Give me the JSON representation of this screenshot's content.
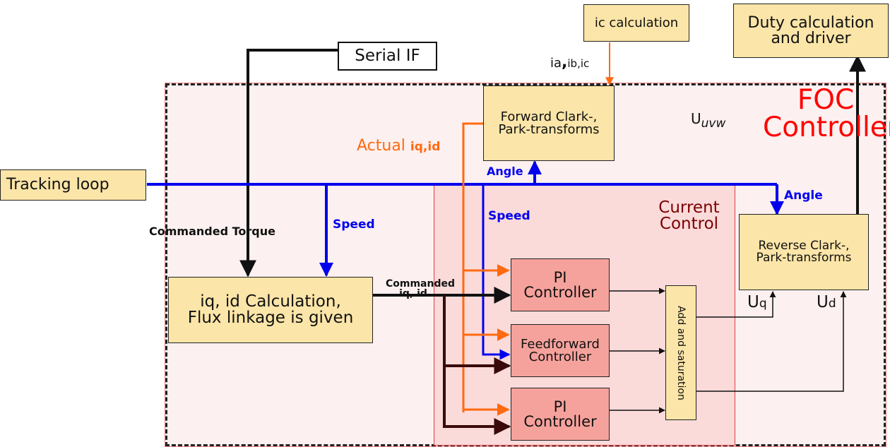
{
  "foc": {
    "line1": "FOC",
    "line2": "Controller"
  },
  "current_control": {
    "line1": "Current",
    "line2": "Control"
  },
  "boxes": {
    "serial_if": "Serial IF",
    "ic_calc": "ic calculation",
    "duty": {
      "line1": "Duty calculation",
      "line2": "and driver"
    },
    "tracking": "Tracking loop",
    "forward": {
      "line1": "Forward Clark-,",
      "line2": "Park-transforms"
    },
    "reverse": {
      "line1": "Reverse Clark-,",
      "line2": "Park-transforms"
    },
    "iq_calc": {
      "line1": "iq, id Calculation,",
      "line2": "Flux linkage is given"
    },
    "pi1": {
      "line1": "PI",
      "line2": "Controller"
    },
    "ff": {
      "line1": "Feedforward",
      "line2": "Controller"
    },
    "pi2": {
      "line1": "PI",
      "line2": "Controller"
    },
    "add_sat": "Add and saturation"
  },
  "labels": {
    "iabc": {
      "a": "ia",
      "comma": ",",
      "b": "ib,ic"
    },
    "uuvw": {
      "main": "U",
      "sub": "uvw"
    },
    "actual": {
      "main": "Actual ",
      "sub": "iq,id"
    },
    "angle1": "Angle",
    "angle2": "Angle",
    "speed1": "Speed",
    "speed2": "Speed",
    "cmd_torque": "Commanded Torque",
    "cmd_iqid": {
      "line1": "Commanded",
      "line2": "iq, id"
    },
    "uq": {
      "main": "U",
      "sub": "q"
    },
    "ud": {
      "main": "U",
      "sub": "d"
    }
  },
  "colors": {
    "foc_text": "#ff0000",
    "current_control_text": "#7a0000",
    "blue": "#0000ee",
    "orange": "#ff6a10",
    "box_yellow": "#fbe5a8",
    "box_pink": "#f6a29c"
  }
}
